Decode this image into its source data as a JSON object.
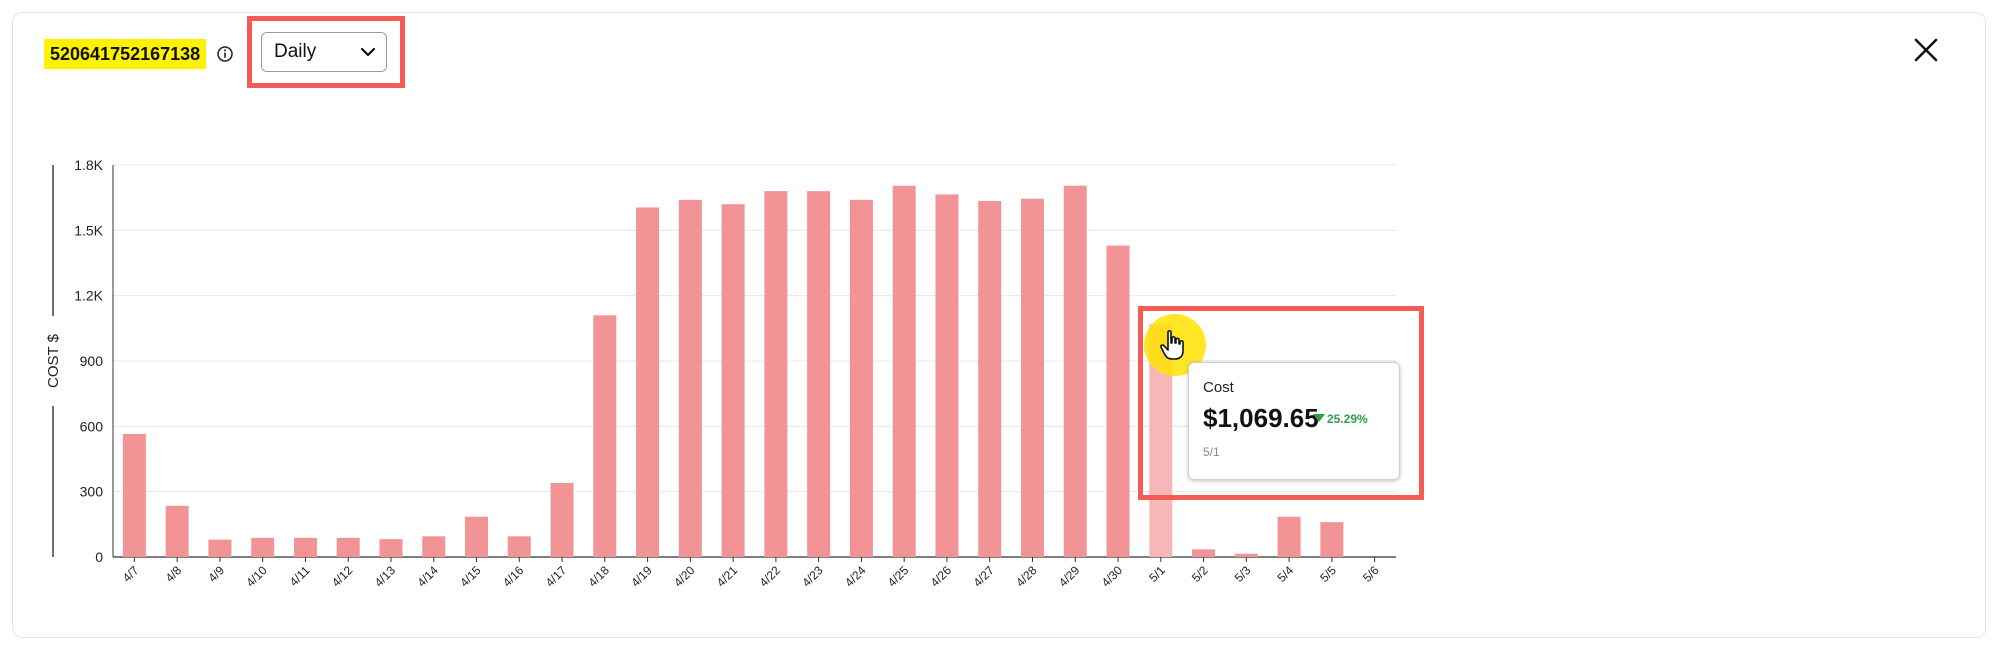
{
  "header": {
    "account_id": "520641752167138",
    "granularity": "Daily",
    "close_icon": "close-icon",
    "info_icon": "info-icon"
  },
  "tooltip": {
    "label": "Cost",
    "value": "$1,069.65",
    "change": "25.29%",
    "change_direction": "down",
    "date": "5/1"
  },
  "colors": {
    "bar": "#f29496",
    "bar_hover": "#f7b7b8",
    "highlight": "#f25c54",
    "account_highlight": "#fff200",
    "change_down": "#2e9e4a"
  },
  "chart_data": {
    "type": "bar",
    "ylabel": "COST $",
    "ylim": [
      0,
      1800
    ],
    "yticks": [
      0,
      300,
      600,
      900,
      1200,
      1500,
      1800
    ],
    "ytick_labels": [
      "0",
      "300",
      "600",
      "900",
      "1.2K",
      "1.5K",
      "1.8K"
    ],
    "grid": true,
    "categories": [
      "4/7",
      "4/8",
      "4/9",
      "4/10",
      "4/11",
      "4/12",
      "4/13",
      "4/14",
      "4/15",
      "4/16",
      "4/17",
      "4/18",
      "4/19",
      "4/20",
      "4/21",
      "4/22",
      "4/23",
      "4/24",
      "4/25",
      "4/26",
      "4/27",
      "4/28",
      "4/29",
      "4/30",
      "5/1",
      "5/2",
      "5/3",
      "5/4",
      "5/5",
      "5/6"
    ],
    "values": [
      565,
      235,
      80,
      88,
      88,
      88,
      82,
      95,
      185,
      95,
      340,
      1110,
      1605,
      1640,
      1620,
      1680,
      1680,
      1640,
      1705,
      1665,
      1635,
      1645,
      1705,
      1430,
      1069.65,
      35,
      15,
      185,
      160,
      0
    ],
    "highlighted_category": "5/1"
  }
}
